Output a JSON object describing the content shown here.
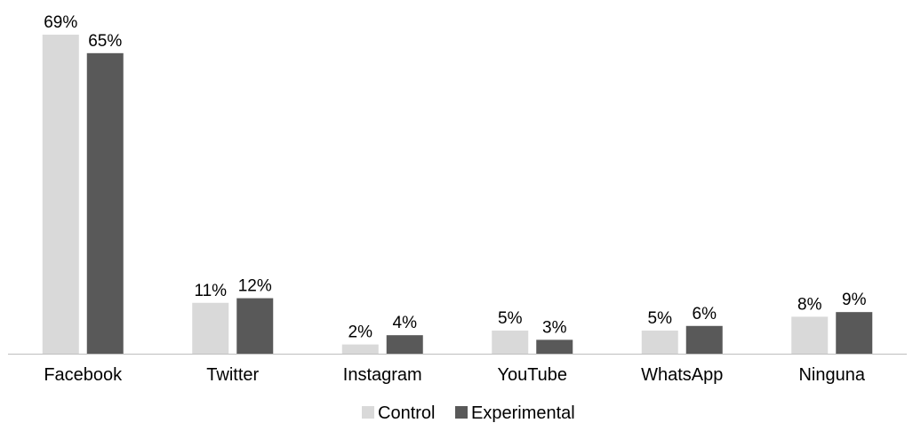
{
  "chart_data": {
    "type": "bar",
    "categories": [
      "Facebook",
      "Twitter",
      "Instagram",
      "YouTube",
      "WhatsApp",
      "Ninguna"
    ],
    "series": [
      {
        "name": "Control",
        "color": "#d9d9d9",
        "values": [
          69,
          11,
          2,
          5,
          5,
          8
        ],
        "labels": [
          "69%",
          "11%",
          "2%",
          "5%",
          "5%",
          "8%"
        ]
      },
      {
        "name": "Experimental",
        "color": "#595959",
        "values": [
          65,
          12,
          4,
          3,
          6,
          9
        ],
        "labels": [
          "65%",
          "12%",
          "4%",
          "3%",
          "6%",
          "9%"
        ]
      }
    ],
    "unit": "%",
    "ylim": [
      0,
      69
    ],
    "grid": false,
    "legend": "bottom",
    "title": "",
    "xlabel": "",
    "ylabel": ""
  }
}
